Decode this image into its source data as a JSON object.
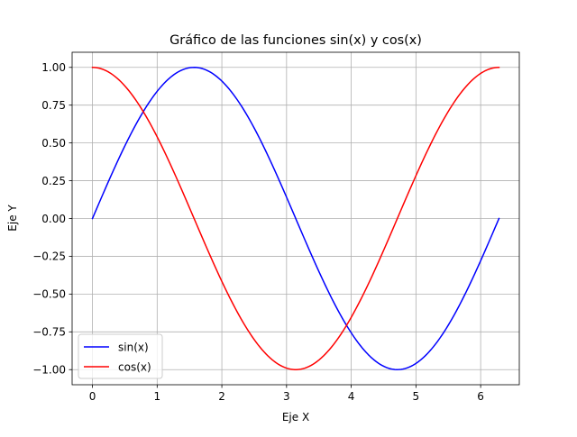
{
  "chart_data": {
    "type": "line",
    "title": "Gráfico de las funciones sin(x) y cos(x)",
    "xlabel": "Eje X",
    "ylabel": "Eje Y",
    "xlim": [
      -0.31416,
      6.59734
    ],
    "ylim": [
      -1.1,
      1.1
    ],
    "xticks": [
      0,
      1,
      2,
      3,
      4,
      5,
      6
    ],
    "xtick_labels": [
      "0",
      "1",
      "2",
      "3",
      "4",
      "5",
      "6"
    ],
    "yticks": [
      -1.0,
      -0.75,
      -0.5,
      -0.25,
      0.0,
      0.25,
      0.5,
      0.75,
      1.0
    ],
    "ytick_labels": [
      "−1.00",
      "−0.75",
      "−0.50",
      "−0.25",
      "0.00",
      "0.25",
      "0.50",
      "0.75",
      "1.00"
    ],
    "grid": true,
    "legend_position": "lower-left",
    "x_range": [
      0,
      6.283185
    ],
    "series": [
      {
        "name": "sin(x)",
        "color": "#0000ff",
        "function": "sin"
      },
      {
        "name": "cos(x)",
        "color": "#ff0000",
        "function": "cos"
      }
    ]
  }
}
